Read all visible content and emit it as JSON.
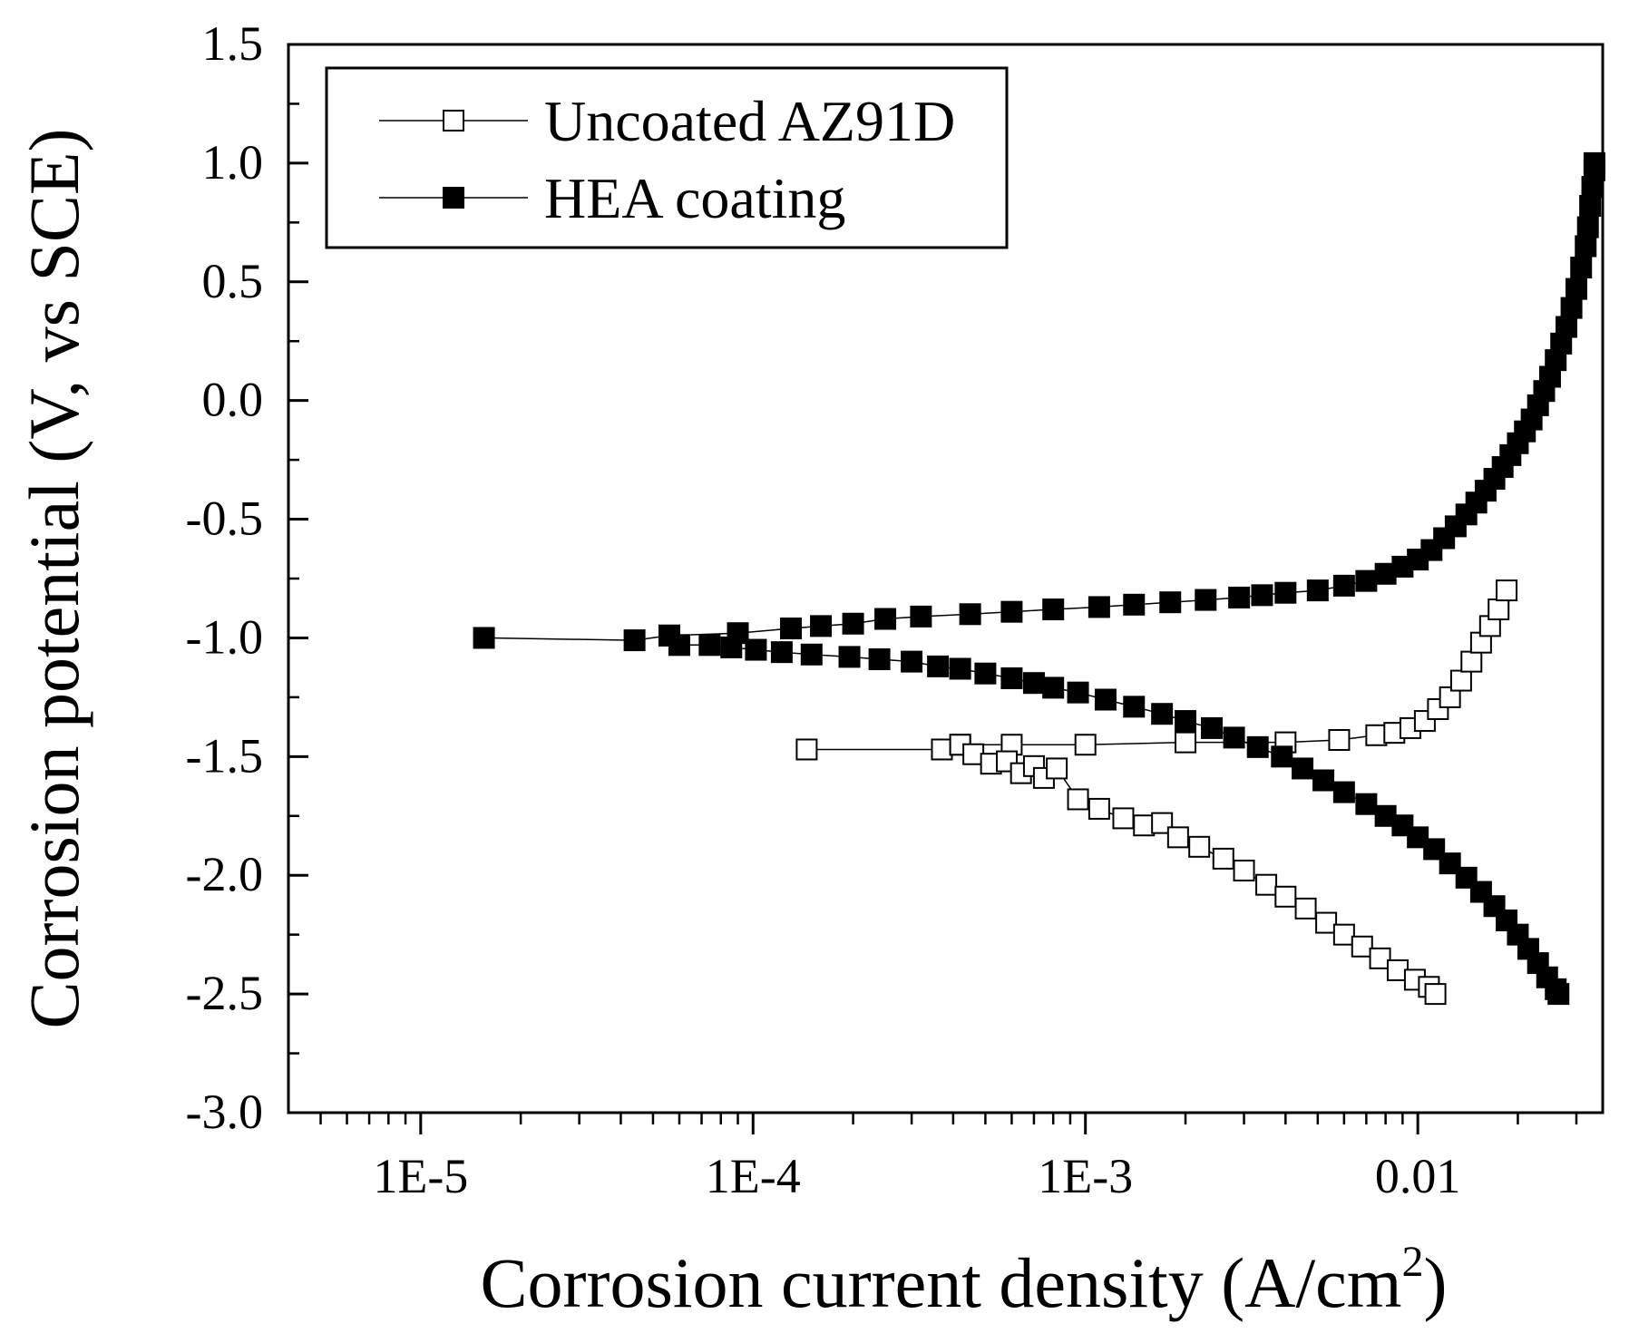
{
  "chart_data": {
    "type": "scatter",
    "title": "",
    "xlabel": "Corrosion current density (A/cm",
    "xlabel_sup": "2",
    "xlabel_close": ")",
    "ylabel": "Corrosion potential (V, vs SCE)",
    "xscale": "log",
    "xlim": [
      4e-06,
      0.036
    ],
    "ylim": [
      -3.0,
      1.5
    ],
    "x_ticks": [
      {
        "value": 1e-05,
        "label": "1E-5"
      },
      {
        "value": 0.0001,
        "label": "1E-4"
      },
      {
        "value": 0.001,
        "label": "1E-3"
      },
      {
        "value": 0.01,
        "label": "0.01"
      }
    ],
    "y_ticks": [
      {
        "value": 1.5,
        "label": "1.5"
      },
      {
        "value": 1.0,
        "label": "1.0"
      },
      {
        "value": 0.5,
        "label": "0.5"
      },
      {
        "value": 0.0,
        "label": "0.0"
      },
      {
        "value": -0.5,
        "label": "-0.5"
      },
      {
        "value": -1.0,
        "label": "-1.0"
      },
      {
        "value": -1.5,
        "label": "-1.5"
      },
      {
        "value": -2.0,
        "label": "-2.0"
      },
      {
        "value": -2.5,
        "label": "-2.5"
      },
      {
        "value": -3.0,
        "label": "-3.0"
      }
    ],
    "legend_position": "top-left",
    "series": [
      {
        "name": "Uncoated AZ91D",
        "marker": "open-square",
        "color": "#000000",
        "anodic": [
          [
            0.000145,
            -1.47
          ],
          [
            0.00037,
            -1.47
          ],
          [
            0.00042,
            -1.45
          ],
          [
            0.0006,
            -1.45
          ],
          [
            0.001,
            -1.45
          ],
          [
            0.002,
            -1.44
          ],
          [
            0.004,
            -1.44
          ],
          [
            0.0058,
            -1.43
          ],
          [
            0.0075,
            -1.41
          ],
          [
            0.0085,
            -1.4
          ],
          [
            0.0095,
            -1.38
          ],
          [
            0.0105,
            -1.35
          ],
          [
            0.0115,
            -1.3
          ],
          [
            0.0125,
            -1.25
          ],
          [
            0.0135,
            -1.18
          ],
          [
            0.0145,
            -1.1
          ],
          [
            0.0155,
            -1.02
          ],
          [
            0.0165,
            -0.95
          ],
          [
            0.0175,
            -0.88
          ],
          [
            0.0185,
            -0.8
          ]
        ],
        "cathodic": [
          [
            0.00042,
            -1.45
          ],
          [
            0.00046,
            -1.49
          ],
          [
            0.00052,
            -1.53
          ],
          [
            0.00058,
            -1.52
          ],
          [
            0.00064,
            -1.57
          ],
          [
            0.0007,
            -1.54
          ],
          [
            0.00075,
            -1.59
          ],
          [
            0.00082,
            -1.55
          ],
          [
            0.00095,
            -1.68
          ],
          [
            0.0011,
            -1.72
          ],
          [
            0.0013,
            -1.76
          ],
          [
            0.0015,
            -1.79
          ],
          [
            0.0017,
            -1.78
          ],
          [
            0.0019,
            -1.84
          ],
          [
            0.0022,
            -1.88
          ],
          [
            0.0026,
            -1.93
          ],
          [
            0.003,
            -1.98
          ],
          [
            0.0035,
            -2.04
          ],
          [
            0.004,
            -2.09
          ],
          [
            0.0046,
            -2.14
          ],
          [
            0.0053,
            -2.2
          ],
          [
            0.006,
            -2.25
          ],
          [
            0.0068,
            -2.3
          ],
          [
            0.0077,
            -2.35
          ],
          [
            0.0087,
            -2.4
          ],
          [
            0.0098,
            -2.44
          ],
          [
            0.0108,
            -2.47
          ],
          [
            0.0113,
            -2.5
          ]
        ]
      },
      {
        "name": "HEA coating",
        "marker": "filled-square",
        "color": "#000000",
        "anodic": [
          [
            1.55e-05,
            -1.0
          ],
          [
            4.4e-05,
            -1.01
          ],
          [
            5.6e-05,
            -0.99
          ],
          [
            9e-05,
            -0.98
          ],
          [
            0.00013,
            -0.96
          ],
          [
            0.00016,
            -0.95
          ],
          [
            0.0002,
            -0.94
          ],
          [
            0.00025,
            -0.92
          ],
          [
            0.00032,
            -0.91
          ],
          [
            0.00045,
            -0.9
          ],
          [
            0.0006,
            -0.89
          ],
          [
            0.0008,
            -0.88
          ],
          [
            0.0011,
            -0.87
          ],
          [
            0.0014,
            -0.86
          ],
          [
            0.0018,
            -0.85
          ],
          [
            0.0023,
            -0.84
          ],
          [
            0.0029,
            -0.83
          ],
          [
            0.0034,
            -0.82
          ],
          [
            0.004,
            -0.81
          ],
          [
            0.005,
            -0.8
          ],
          [
            0.006,
            -0.78
          ],
          [
            0.007,
            -0.76
          ],
          [
            0.008,
            -0.73
          ],
          [
            0.009,
            -0.7
          ],
          [
            0.01,
            -0.67
          ],
          [
            0.011,
            -0.63
          ],
          [
            0.012,
            -0.58
          ],
          [
            0.013,
            -0.53
          ],
          [
            0.014,
            -0.48
          ],
          [
            0.015,
            -0.43
          ],
          [
            0.016,
            -0.38
          ],
          [
            0.017,
            -0.33
          ],
          [
            0.018,
            -0.28
          ],
          [
            0.019,
            -0.23
          ],
          [
            0.02,
            -0.18
          ],
          [
            0.021,
            -0.13
          ],
          [
            0.022,
            -0.08
          ],
          [
            0.023,
            -0.02
          ],
          [
            0.024,
            0.04
          ],
          [
            0.025,
            0.1
          ],
          [
            0.026,
            0.17
          ],
          [
            0.027,
            0.24
          ],
          [
            0.028,
            0.31
          ],
          [
            0.029,
            0.39
          ],
          [
            0.03,
            0.47
          ],
          [
            0.031,
            0.56
          ],
          [
            0.032,
            0.65
          ],
          [
            0.0325,
            0.73
          ],
          [
            0.033,
            0.82
          ],
          [
            0.0335,
            0.9
          ],
          [
            0.034,
            0.97
          ],
          [
            0.034,
            1.0
          ]
        ],
        "cathodic": [
          [
            5.6e-05,
            -0.99
          ],
          [
            6e-05,
            -1.03
          ],
          [
            7.4e-05,
            -1.03
          ],
          [
            8.6e-05,
            -1.04
          ],
          [
            0.000102,
            -1.05
          ],
          [
            0.000122,
            -1.06
          ],
          [
            0.00015,
            -1.07
          ],
          [
            0.000195,
            -1.08
          ],
          [
            0.00024,
            -1.09
          ],
          [
            0.0003,
            -1.1
          ],
          [
            0.00036,
            -1.12
          ],
          [
            0.00042,
            -1.13
          ],
          [
            0.0005,
            -1.15
          ],
          [
            0.0006,
            -1.17
          ],
          [
            0.0007,
            -1.19
          ],
          [
            0.0008,
            -1.21
          ],
          [
            0.00095,
            -1.23
          ],
          [
            0.00115,
            -1.26
          ],
          [
            0.0014,
            -1.29
          ],
          [
            0.0017,
            -1.32
          ],
          [
            0.002,
            -1.35
          ],
          [
            0.0024,
            -1.38
          ],
          [
            0.0028,
            -1.42
          ],
          [
            0.0033,
            -1.46
          ],
          [
            0.0039,
            -1.5
          ],
          [
            0.0045,
            -1.55
          ],
          [
            0.0052,
            -1.6
          ],
          [
            0.006,
            -1.65
          ],
          [
            0.007,
            -1.7
          ],
          [
            0.008,
            -1.75
          ],
          [
            0.009,
            -1.79
          ],
          [
            0.01,
            -1.84
          ],
          [
            0.0112,
            -1.89
          ],
          [
            0.0125,
            -1.95
          ],
          [
            0.014,
            -2.01
          ],
          [
            0.0155,
            -2.07
          ],
          [
            0.017,
            -2.13
          ],
          [
            0.0185,
            -2.19
          ],
          [
            0.02,
            -2.25
          ],
          [
            0.0215,
            -2.31
          ],
          [
            0.023,
            -2.37
          ],
          [
            0.0245,
            -2.43
          ],
          [
            0.026,
            -2.48
          ],
          [
            0.0265,
            -2.5
          ]
        ]
      }
    ]
  }
}
